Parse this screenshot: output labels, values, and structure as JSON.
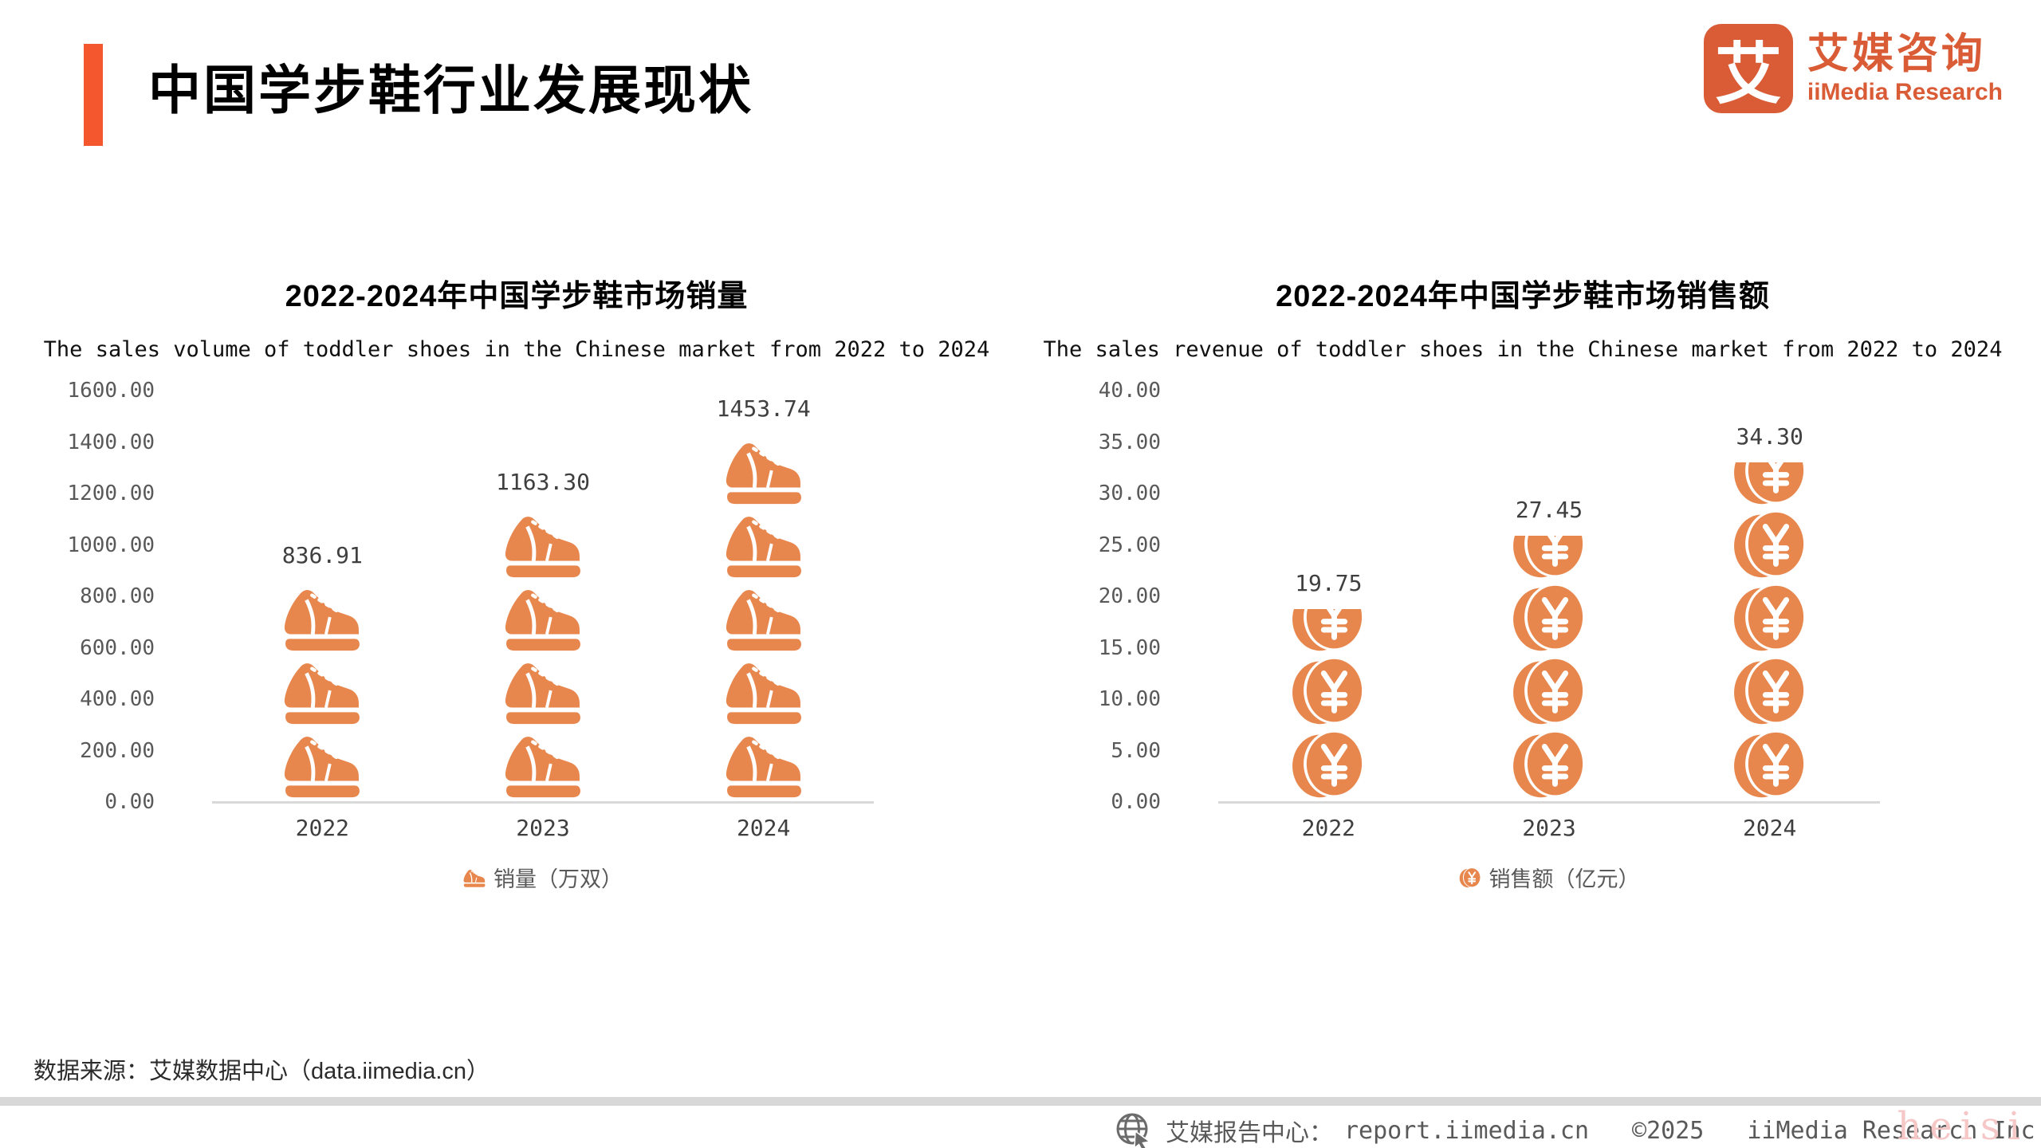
{
  "page": {
    "title": "中国学步鞋行业发展现状",
    "logo": {
      "glyph": "艾",
      "name_cn": "艾媒咨询",
      "name_en": "iiMedia Research"
    },
    "source_note": "数据来源：艾媒数据中心（data.iimedia.cn）",
    "footer": {
      "report_center": "艾媒报告中心：",
      "report_url": "report.iimedia.cn",
      "copyright": "©2025",
      "company": "iiMedia Research  Inc",
      "watermark": "heisi"
    }
  },
  "colors": {
    "accent_orange": "#F4572E",
    "logo_orange": "#D95C36",
    "icon_orange": "#E8874D",
    "axis_gray": "#D9D9D9",
    "tick_gray": "#595959",
    "label_gray": "#3f3f3f",
    "watermark_pink": "#F6C7C7"
  },
  "chart_data": [
    {
      "type": "bar",
      "variant": "pictogram",
      "icon": "shoe-icon",
      "title": "2022-2024年中国学步鞋市场销量",
      "subtitle": "The sales volume of toddler shoes in the Chinese market from 2022 to 2024",
      "categories": [
        "2022",
        "2023",
        "2024"
      ],
      "values": [
        836.91,
        1163.3,
        1453.74
      ],
      "value_labels": [
        "836.91",
        "1163.30",
        "1453.74"
      ],
      "legend": "销量（万双）",
      "ylabel_ticks": [
        "1600.00",
        "1400.00",
        "1200.00",
        "1000.00",
        "800.00",
        "600.00",
        "400.00",
        "200.00",
        "0.00"
      ],
      "ylim": [
        0,
        1600
      ],
      "grid": false,
      "legend_position": "bottom",
      "icons_per_bar": [
        3,
        4,
        5
      ],
      "clip_top_icon": false
    },
    {
      "type": "bar",
      "variant": "pictogram",
      "icon": "coin-icon",
      "title": "2022-2024年中国学步鞋市场销售额",
      "subtitle": "The sales revenue of toddler shoes in the Chinese market from 2022 to 2024",
      "categories": [
        "2022",
        "2023",
        "2024"
      ],
      "values": [
        19.75,
        27.45,
        34.3
      ],
      "value_labels": [
        "19.75",
        "27.45",
        "34.30"
      ],
      "legend": "销售额（亿元）",
      "ylabel_ticks": [
        "40.00",
        "35.00",
        "30.00",
        "25.00",
        "20.00",
        "15.00",
        "10.00",
        "5.00",
        "0.00"
      ],
      "ylim": [
        0,
        40
      ],
      "grid": false,
      "legend_position": "bottom",
      "icons_per_bar": [
        3,
        4,
        5
      ],
      "clip_top_icon": true
    }
  ]
}
